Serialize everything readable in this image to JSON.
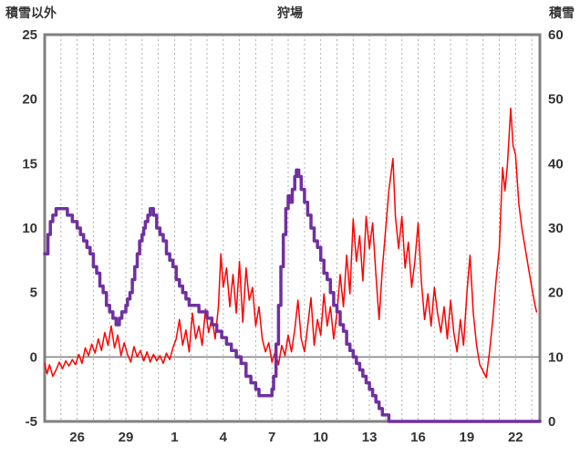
{
  "chart_data": {
    "type": "line",
    "title": "狩場",
    "left_axis": {
      "title": "積雪以外",
      "min": -5,
      "max": 25,
      "ticks": [
        -5,
        0,
        5,
        10,
        15,
        20,
        25
      ]
    },
    "right_axis": {
      "title": "積雪",
      "min": 0,
      "max": 60,
      "ticks": [
        0,
        10,
        20,
        30,
        40,
        50,
        60
      ]
    },
    "x_axis": {
      "min": 0,
      "max": 30.5,
      "grid": {
        "start": 1,
        "end": 30,
        "step": 1
      },
      "tick_labels": [
        {
          "pos": 2,
          "label": "26"
        },
        {
          "pos": 5,
          "label": "29"
        },
        {
          "pos": 8,
          "label": "1"
        },
        {
          "pos": 11,
          "label": "4"
        },
        {
          "pos": 14,
          "label": "7"
        },
        {
          "pos": 17,
          "label": "10"
        },
        {
          "pos": 20,
          "label": "13"
        },
        {
          "pos": 23,
          "label": "16"
        },
        {
          "pos": 26,
          "label": "19"
        },
        {
          "pos": 29,
          "label": "22"
        }
      ]
    },
    "zero_line_left_value": 0,
    "colors": {
      "grid": "#b0b0b0",
      "frame": "#808080",
      "zero_line": "#808080",
      "tick_text": "#333333",
      "title_text": "#333333",
      "red_series": "#ff0000",
      "purple_series": "#7030a0"
    },
    "series": [
      {
        "name": "積雪以外",
        "axis": "left",
        "color": "#ff0000",
        "width": 1.5,
        "step": false,
        "points": [
          [
            0,
            -0.5
          ],
          [
            0.15,
            -1.3
          ],
          [
            0.3,
            -0.6
          ],
          [
            0.5,
            -1.5
          ],
          [
            0.7,
            -1.0
          ],
          [
            0.9,
            -0.4
          ],
          [
            1.1,
            -0.9
          ],
          [
            1.3,
            -0.3
          ],
          [
            1.5,
            -0.7
          ],
          [
            1.7,
            -0.2
          ],
          [
            1.9,
            -0.6
          ],
          [
            2.1,
            0.2
          ],
          [
            2.3,
            -0.5
          ],
          [
            2.5,
            0.7
          ],
          [
            2.7,
            0.1
          ],
          [
            2.9,
            1.0
          ],
          [
            3.1,
            0.3
          ],
          [
            3.3,
            1.4
          ],
          [
            3.5,
            0.5
          ],
          [
            3.7,
            1.9
          ],
          [
            3.9,
            0.9
          ],
          [
            4.1,
            2.4
          ],
          [
            4.3,
            0.7
          ],
          [
            4.5,
            1.7
          ],
          [
            4.7,
            0.1
          ],
          [
            4.9,
            1.1
          ],
          [
            5.1,
            0.2
          ],
          [
            5.3,
            -0.4
          ],
          [
            5.5,
            0.8
          ],
          [
            5.7,
            0.0
          ],
          [
            5.9,
            0.5
          ],
          [
            6.1,
            -0.3
          ],
          [
            6.3,
            0.4
          ],
          [
            6.5,
            -0.4
          ],
          [
            6.7,
            0.2
          ],
          [
            6.9,
            -0.3
          ],
          [
            7.1,
            0.1
          ],
          [
            7.3,
            -0.5
          ],
          [
            7.5,
            0.3
          ],
          [
            7.7,
            -0.2
          ],
          [
            7.9,
            0.7
          ],
          [
            8.1,
            1.4
          ],
          [
            8.3,
            2.9
          ],
          [
            8.5,
            0.9
          ],
          [
            8.7,
            2.1
          ],
          [
            8.9,
            0.4
          ],
          [
            9.1,
            3.4
          ],
          [
            9.3,
            1.4
          ],
          [
            9.5,
            2.4
          ],
          [
            9.7,
            0.9
          ],
          [
            9.9,
            3.7
          ],
          [
            10.1,
            1.9
          ],
          [
            10.3,
            3.1
          ],
          [
            10.5,
            1.4
          ],
          [
            10.7,
            3.9
          ],
          [
            10.85,
            8.0
          ],
          [
            11.0,
            5.4
          ],
          [
            11.2,
            6.9
          ],
          [
            11.4,
            3.9
          ],
          [
            11.6,
            6.4
          ],
          [
            11.8,
            3.4
          ],
          [
            12.0,
            7.4
          ],
          [
            12.2,
            2.7
          ],
          [
            12.4,
            6.9
          ],
          [
            12.6,
            4.4
          ],
          [
            12.8,
            5.4
          ],
          [
            13.0,
            2.4
          ],
          [
            13.2,
            3.9
          ],
          [
            13.4,
            1.4
          ],
          [
            13.6,
            0.4
          ],
          [
            13.8,
            1.1
          ],
          [
            14.0,
            -0.4
          ],
          [
            14.2,
            0.4
          ],
          [
            14.4,
            -0.6
          ],
          [
            14.6,
            0.9
          ],
          [
            14.8,
            0.1
          ],
          [
            15.0,
            1.7
          ],
          [
            15.2,
            0.4
          ],
          [
            15.4,
            2.1
          ],
          [
            15.6,
            4.4
          ],
          [
            15.8,
            1.4
          ],
          [
            16.0,
            0.4
          ],
          [
            16.2,
            2.4
          ],
          [
            16.4,
            4.6
          ],
          [
            16.6,
            0.9
          ],
          [
            16.8,
            2.9
          ],
          [
            17.0,
            1.7
          ],
          [
            17.2,
            4.9
          ],
          [
            17.4,
            2.4
          ],
          [
            17.6,
            3.9
          ],
          [
            17.8,
            1.4
          ],
          [
            18.0,
            3.4
          ],
          [
            18.2,
            6.4
          ],
          [
            18.4,
            3.9
          ],
          [
            18.6,
            7.9
          ],
          [
            18.8,
            4.9
          ],
          [
            19.0,
            10.7
          ],
          [
            19.2,
            7.4
          ],
          [
            19.4,
            9.4
          ],
          [
            19.6,
            5.9
          ],
          [
            19.8,
            10.9
          ],
          [
            20.0,
            8.4
          ],
          [
            20.2,
            10.4
          ],
          [
            20.4,
            6.4
          ],
          [
            20.6,
            2.9
          ],
          [
            20.8,
            6.9
          ],
          [
            21.0,
            9.9
          ],
          [
            21.2,
            12.9
          ],
          [
            21.45,
            15.4
          ],
          [
            21.6,
            10.9
          ],
          [
            21.8,
            8.4
          ],
          [
            22.0,
            10.9
          ],
          [
            22.2,
            6.9
          ],
          [
            22.4,
            8.9
          ],
          [
            22.6,
            5.4
          ],
          [
            22.8,
            7.4
          ],
          [
            23.0,
            10.4
          ],
          [
            23.2,
            5.9
          ],
          [
            23.4,
            2.9
          ],
          [
            23.6,
            4.9
          ],
          [
            23.8,
            2.4
          ],
          [
            24.0,
            5.4
          ],
          [
            24.2,
            3.4
          ],
          [
            24.4,
            1.9
          ],
          [
            24.6,
            3.9
          ],
          [
            24.8,
            1.4
          ],
          [
            25.0,
            4.4
          ],
          [
            25.2,
            1.9
          ],
          [
            25.4,
            0.4
          ],
          [
            25.6,
            2.9
          ],
          [
            25.8,
            0.9
          ],
          [
            26.0,
            4.9
          ],
          [
            26.2,
            7.9
          ],
          [
            26.4,
            3.4
          ],
          [
            26.6,
            0.9
          ],
          [
            26.8,
            -0.6
          ],
          [
            27.0,
            -1.1
          ],
          [
            27.2,
            -1.6
          ],
          [
            27.4,
            0.4
          ],
          [
            27.6,
            2.9
          ],
          [
            27.8,
            5.9
          ],
          [
            28.0,
            8.4
          ],
          [
            28.2,
            14.7
          ],
          [
            28.35,
            12.9
          ],
          [
            28.5,
            14.9
          ],
          [
            28.7,
            19.3
          ],
          [
            28.85,
            16.4
          ],
          [
            29.0,
            15.7
          ],
          [
            29.2,
            11.9
          ],
          [
            29.4,
            9.9
          ],
          [
            29.6,
            8.4
          ],
          [
            29.8,
            6.9
          ],
          [
            30.0,
            5.4
          ],
          [
            30.2,
            4.0
          ],
          [
            30.3,
            3.5
          ]
        ]
      },
      {
        "name": "積雪",
        "axis": "right",
        "color": "#7030a0",
        "width": 3.5,
        "step": true,
        "points": [
          [
            0,
            26
          ],
          [
            0.2,
            29
          ],
          [
            0.35,
            31
          ],
          [
            0.5,
            32
          ],
          [
            0.7,
            33
          ],
          [
            1.1,
            33
          ],
          [
            1.4,
            32
          ],
          [
            1.7,
            31
          ],
          [
            2.0,
            30
          ],
          [
            2.2,
            29
          ],
          [
            2.4,
            28
          ],
          [
            2.6,
            27
          ],
          [
            2.8,
            26
          ],
          [
            3.0,
            24
          ],
          [
            3.2,
            23
          ],
          [
            3.4,
            21
          ],
          [
            3.6,
            20
          ],
          [
            3.8,
            18
          ],
          [
            4.0,
            17
          ],
          [
            4.2,
            16
          ],
          [
            4.4,
            15
          ],
          [
            4.6,
            16
          ],
          [
            4.75,
            17
          ],
          [
            4.9,
            17
          ],
          [
            5.0,
            18
          ],
          [
            5.1,
            19
          ],
          [
            5.25,
            20
          ],
          [
            5.4,
            22
          ],
          [
            5.55,
            24
          ],
          [
            5.7,
            26
          ],
          [
            5.85,
            28
          ],
          [
            6.0,
            29
          ],
          [
            6.1,
            30
          ],
          [
            6.2,
            31
          ],
          [
            6.35,
            32
          ],
          [
            6.5,
            33
          ],
          [
            6.7,
            32
          ],
          [
            6.9,
            30
          ],
          [
            7.1,
            29
          ],
          [
            7.3,
            28
          ],
          [
            7.5,
            26
          ],
          [
            7.7,
            25
          ],
          [
            7.9,
            24
          ],
          [
            8.1,
            22
          ],
          [
            8.3,
            21
          ],
          [
            8.5,
            20
          ],
          [
            8.7,
            19
          ],
          [
            8.9,
            18
          ],
          [
            9.2,
            18
          ],
          [
            9.5,
            17
          ],
          [
            9.8,
            17
          ],
          [
            10.0,
            16
          ],
          [
            10.3,
            15
          ],
          [
            10.6,
            14
          ],
          [
            10.9,
            13
          ],
          [
            11.2,
            12
          ],
          [
            11.5,
            11
          ],
          [
            11.8,
            10
          ],
          [
            12.1,
            9
          ],
          [
            12.4,
            7
          ],
          [
            12.7,
            6
          ],
          [
            13.0,
            5
          ],
          [
            13.2,
            4
          ],
          [
            13.5,
            4
          ],
          [
            13.8,
            4
          ],
          [
            14.0,
            5
          ],
          [
            14.1,
            7
          ],
          [
            14.25,
            12
          ],
          [
            14.4,
            18
          ],
          [
            14.55,
            24
          ],
          [
            14.7,
            29
          ],
          [
            14.85,
            33
          ],
          [
            15.0,
            35
          ],
          [
            15.1,
            34
          ],
          [
            15.25,
            36
          ],
          [
            15.4,
            38
          ],
          [
            15.5,
            39
          ],
          [
            15.65,
            38
          ],
          [
            15.8,
            36
          ],
          [
            16.0,
            34
          ],
          [
            16.2,
            32
          ],
          [
            16.4,
            30
          ],
          [
            16.6,
            28
          ],
          [
            16.8,
            27
          ],
          [
            17.0,
            25
          ],
          [
            17.2,
            23
          ],
          [
            17.4,
            22
          ],
          [
            17.6,
            20
          ],
          [
            17.8,
            18
          ],
          [
            18.0,
            17
          ],
          [
            18.2,
            15
          ],
          [
            18.4,
            14
          ],
          [
            18.6,
            12
          ],
          [
            18.8,
            11
          ],
          [
            19.0,
            10
          ],
          [
            19.2,
            9
          ],
          [
            19.4,
            8
          ],
          [
            19.6,
            7
          ],
          [
            19.8,
            6
          ],
          [
            20.0,
            5
          ],
          [
            20.2,
            4
          ],
          [
            20.4,
            3
          ],
          [
            20.6,
            2
          ],
          [
            20.8,
            1
          ],
          [
            21.0,
            1
          ],
          [
            21.2,
            0
          ],
          [
            30.5,
            0
          ]
        ]
      }
    ]
  }
}
